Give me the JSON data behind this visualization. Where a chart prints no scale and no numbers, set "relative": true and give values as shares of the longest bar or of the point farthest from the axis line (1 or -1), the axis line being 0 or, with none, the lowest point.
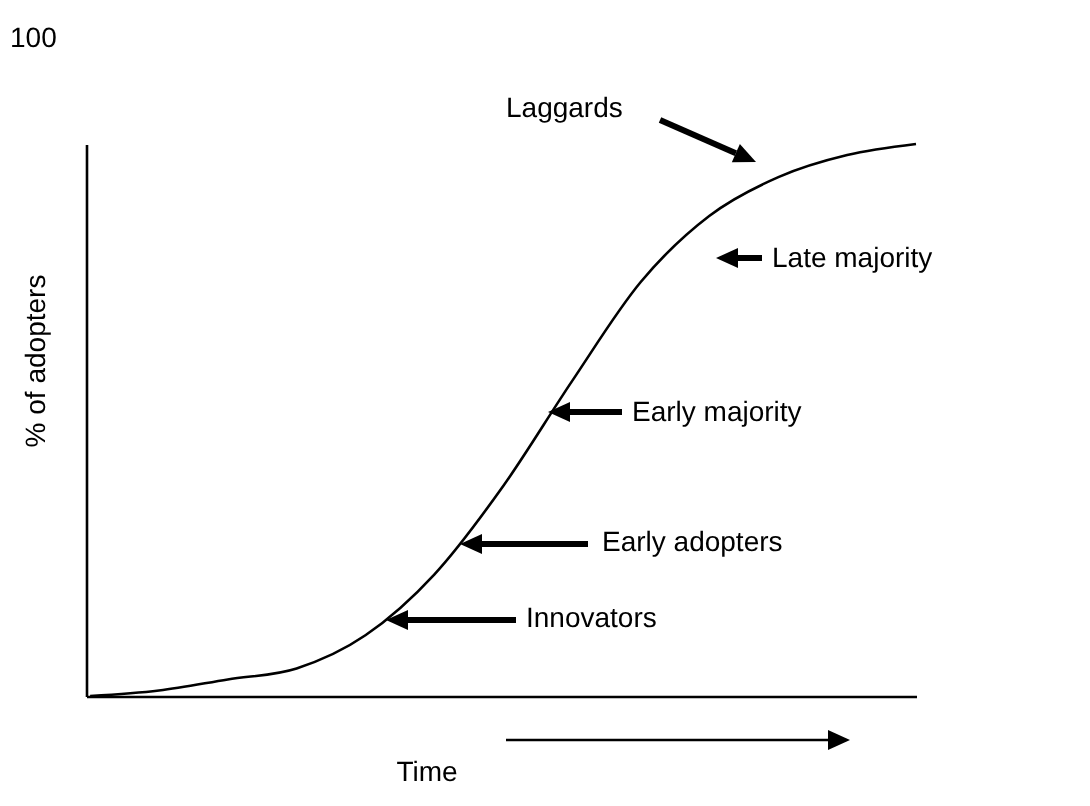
{
  "chart_data": {
    "type": "line",
    "relative": true,
    "xlabel": "Time",
    "ylabel": "% of adopters",
    "color": "#000000",
    "categories": [
      null,
      null,
      null,
      null,
      null,
      null,
      null,
      null,
      null,
      null,
      null,
      null,
      null
    ],
    "values": [
      0,
      0.01,
      0.03,
      0.05,
      0.11,
      0.22,
      0.38,
      0.57,
      0.75,
      0.87,
      0.94,
      0.98,
      1
    ],
    "annotations": [
      "100",
      "Laggards",
      "Late majority",
      "Early majority",
      "Early adopters",
      "Innovators"
    ]
  }
}
